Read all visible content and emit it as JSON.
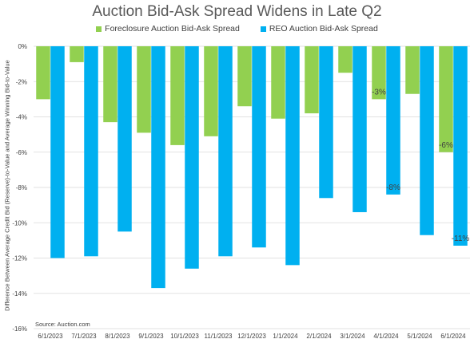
{
  "chart_data": {
    "type": "bar",
    "title": "Auction Bid-Ask Spread Widens in Late Q2",
    "ylabel": "Difference Between Average Credit Bid (Reserve)-to-Value and Average Winning Bid-to-Value",
    "xlabel": "",
    "ylim": [
      -16,
      0
    ],
    "yticks": [
      0,
      -2,
      -4,
      -6,
      -8,
      -10,
      -12,
      -14,
      -16
    ],
    "ytick_labels": [
      "0%",
      "-2%",
      "-4%",
      "-6%",
      "-8%",
      "-10%",
      "-12%",
      "-14%",
      "-16%"
    ],
    "grid": true,
    "legend_position": "top",
    "categories": [
      "6/1/2023",
      "7/1/2023",
      "8/1/2023",
      "9/1/2023",
      "10/1/2023",
      "11/1/2023",
      "12/1/2023",
      "1/1/2024",
      "2/1/2024",
      "3/1/2024",
      "4/1/2024",
      "5/1/2024",
      "6/1/2024"
    ],
    "series": [
      {
        "name": "Foreclosure Auction Bid-Ask Spread",
        "color": "#92d050",
        "values": [
          -3.0,
          -0.9,
          -4.3,
          -4.9,
          -5.6,
          -5.1,
          -3.4,
          -4.1,
          -3.8,
          -1.5,
          -3.0,
          -2.7,
          -6.0
        ],
        "data_labels": {
          "10": "-3%",
          "12": "-6%"
        }
      },
      {
        "name": "REO Auction Bid-Ask Spread",
        "color": "#00b0f0",
        "values": [
          -12.0,
          -11.9,
          -10.5,
          -13.7,
          -12.6,
          -11.9,
          -11.4,
          -12.4,
          -8.6,
          -9.4,
          -8.4,
          -10.7,
          -11.3
        ],
        "data_labels": {
          "10": "-8%",
          "12": "-11%"
        }
      }
    ],
    "source": "Source: Auction.com"
  }
}
